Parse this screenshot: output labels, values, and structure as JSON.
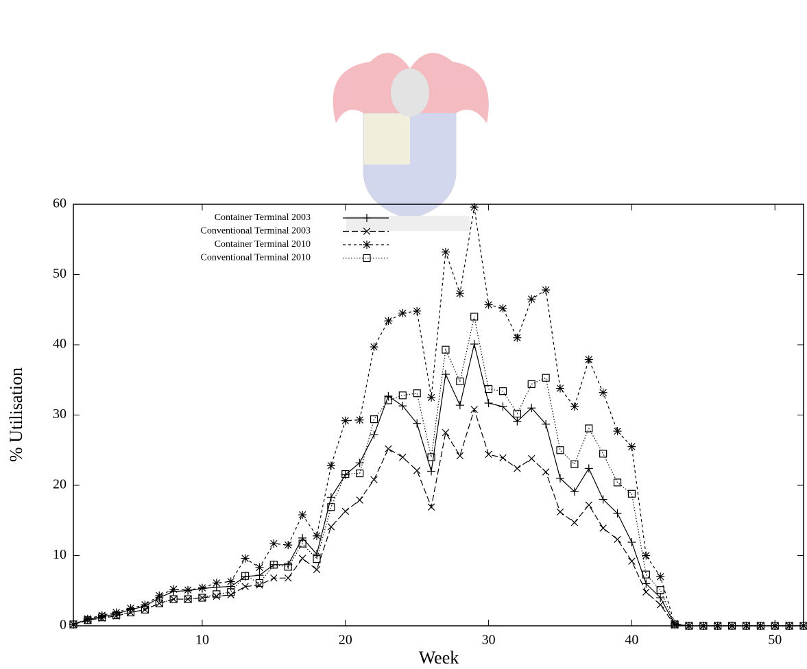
{
  "chart_data": {
    "type": "line",
    "x_label": "Week",
    "y_label": "% Utilisation",
    "x": [
      1,
      2,
      3,
      4,
      5,
      6,
      7,
      8,
      9,
      10,
      11,
      12,
      13,
      14,
      15,
      16,
      17,
      18,
      19,
      20,
      21,
      22,
      23,
      24,
      25,
      26,
      27,
      28,
      29,
      30,
      31,
      32,
      33,
      34,
      35,
      36,
      37,
      38,
      39,
      40,
      41,
      42,
      43,
      44,
      45,
      46,
      47,
      48,
      49,
      50,
      51,
      52
    ],
    "xlim": [
      1,
      52
    ],
    "xticks": [
      10,
      20,
      30,
      40,
      50
    ],
    "ylim": [
      0,
      60
    ],
    "yticks": [
      0,
      10,
      20,
      30,
      40,
      50,
      60
    ],
    "legend": "top-left",
    "series": [
      {
        "name": "Container Terminal 2003",
        "color": "#000000",
        "marker": "plus",
        "dash": "solid",
        "values": [
          0.2,
          0.9,
          1.3,
          1.7,
          2.3,
          2.8,
          4.0,
          4.9,
          5.0,
          5.3,
          5.5,
          5.6,
          7.0,
          7.2,
          8.7,
          8.7,
          12.5,
          10.2,
          18.3,
          21.5,
          23.2,
          27.2,
          32.7,
          31.3,
          28.8,
          22.0,
          35.8,
          31.4,
          40.1,
          31.7,
          31.2,
          29.1,
          31.0,
          28.7,
          21.0,
          19.1,
          22.4,
          18.0,
          16.0,
          11.9,
          6.0,
          4.0,
          0.2,
          0,
          0,
          0,
          0,
          0,
          0,
          0,
          0,
          0
        ]
      },
      {
        "name": "Conventional Terminal 2003",
        "color": "#000000",
        "marker": "cross",
        "dash": "dashed",
        "values": [
          0.2,
          0.8,
          1.1,
          1.4,
          1.9,
          2.3,
          3.2,
          3.8,
          3.8,
          4.0,
          4.2,
          4.4,
          5.6,
          5.8,
          6.8,
          6.8,
          9.6,
          8.0,
          14.1,
          16.3,
          17.9,
          20.8,
          25.2,
          24.0,
          22.1,
          16.9,
          27.5,
          24.2,
          30.8,
          24.4,
          23.9,
          22.4,
          23.8,
          21.9,
          16.2,
          14.7,
          17.2,
          13.9,
          12.3,
          9.2,
          4.8,
          3.0,
          0.1,
          0,
          0,
          0,
          0,
          0,
          0,
          0,
          0,
          0
        ]
      },
      {
        "name": "Container Terminal 2010",
        "color": "#000000",
        "marker": "star",
        "dash": "short-dashed",
        "values": [
          0.2,
          1.0,
          1.5,
          1.9,
          2.5,
          3.0,
          4.3,
          5.2,
          5.1,
          5.4,
          6.1,
          6.3,
          9.6,
          8.3,
          11.7,
          11.5,
          15.8,
          12.8,
          22.8,
          29.2,
          29.3,
          39.7,
          43.4,
          44.5,
          44.8,
          32.5,
          53.2,
          47.3,
          59.6,
          45.7,
          45.2,
          41.0,
          46.5,
          47.8,
          33.8,
          31.2,
          37.9,
          33.2,
          27.7,
          25.5,
          10.0,
          7.0,
          0.3,
          0,
          0,
          0,
          0,
          0,
          0,
          0,
          0,
          0
        ]
      },
      {
        "name": "Conventional Terminal 2010",
        "color": "#000000",
        "marker": "square",
        "dash": "dotted",
        "values": [
          0.2,
          0.8,
          1.2,
          1.5,
          1.9,
          2.3,
          3.2,
          3.8,
          3.8,
          4.0,
          4.5,
          4.8,
          7.1,
          6.1,
          8.7,
          8.4,
          11.7,
          9.5,
          16.9,
          21.6,
          21.7,
          29.4,
          32.1,
          32.8,
          33.1,
          24.0,
          39.3,
          34.8,
          44.0,
          33.7,
          33.4,
          30.2,
          34.4,
          35.3,
          25.0,
          23.0,
          28.1,
          24.5,
          20.4,
          18.8,
          7.3,
          5.1,
          0.2,
          0,
          0,
          0,
          0,
          0,
          0,
          0,
          0,
          0
        ]
      }
    ]
  }
}
